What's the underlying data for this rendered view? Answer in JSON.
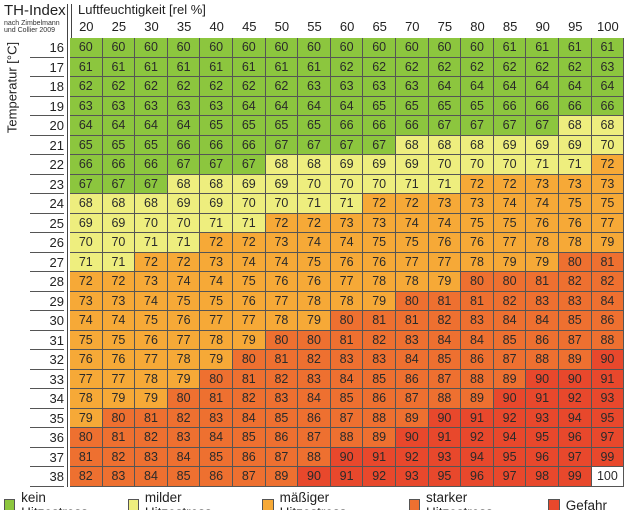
{
  "chart_data": {
    "type": "heatmap",
    "title": "TH-Index",
    "subtitle": "nach Zimbelmann und Collier 2009",
    "xlabel": "Luftfeuchtigkeit [rel %]",
    "ylabel": "Temperatur [°C]",
    "x": [
      "20",
      "25",
      "30",
      "35",
      "40",
      "45",
      "50",
      "55",
      "60",
      "65",
      "70",
      "75",
      "80",
      "85",
      "90",
      "95",
      "100"
    ],
    "y": [
      "16",
      "17",
      "18",
      "19",
      "20",
      "21",
      "22",
      "23",
      "24",
      "25",
      "26",
      "27",
      "28",
      "29",
      "30",
      "31",
      "32",
      "33",
      "34",
      "35",
      "36",
      "37",
      "38"
    ],
    "values": [
      [
        60,
        60,
        60,
        60,
        60,
        60,
        60,
        60,
        60,
        60,
        60,
        60,
        60,
        61,
        61,
        61,
        61
      ],
      [
        61,
        61,
        61,
        61,
        61,
        61,
        61,
        61,
        62,
        62,
        62,
        62,
        62,
        62,
        62,
        62,
        63
      ],
      [
        62,
        62,
        62,
        62,
        62,
        62,
        62,
        63,
        63,
        63,
        63,
        64,
        64,
        64,
        64,
        64,
        64
      ],
      [
        63,
        63,
        63,
        63,
        63,
        64,
        64,
        64,
        64,
        65,
        65,
        65,
        65,
        66,
        66,
        66,
        66
      ],
      [
        64,
        64,
        64,
        64,
        65,
        65,
        65,
        65,
        66,
        66,
        66,
        67,
        67,
        67,
        67,
        68,
        68
      ],
      [
        65,
        65,
        65,
        66,
        66,
        66,
        67,
        67,
        67,
        67,
        68,
        68,
        68,
        69,
        69,
        69,
        70
      ],
      [
        66,
        66,
        66,
        67,
        67,
        67,
        68,
        68,
        69,
        69,
        69,
        70,
        70,
        70,
        71,
        71,
        72
      ],
      [
        67,
        67,
        67,
        68,
        68,
        69,
        69,
        70,
        70,
        70,
        71,
        71,
        72,
        72,
        73,
        73,
        73
      ],
      [
        68,
        68,
        68,
        69,
        69,
        70,
        70,
        71,
        71,
        72,
        72,
        73,
        73,
        74,
        74,
        75,
        75
      ],
      [
        69,
        69,
        70,
        70,
        71,
        71,
        72,
        72,
        73,
        73,
        74,
        74,
        75,
        75,
        76,
        76,
        77
      ],
      [
        70,
        70,
        71,
        71,
        72,
        72,
        73,
        74,
        74,
        75,
        75,
        76,
        76,
        77,
        78,
        78,
        79
      ],
      [
        71,
        71,
        72,
        72,
        73,
        74,
        74,
        75,
        76,
        76,
        77,
        77,
        78,
        79,
        79,
        80,
        81
      ],
      [
        72,
        72,
        73,
        74,
        74,
        75,
        76,
        76,
        77,
        78,
        78,
        79,
        80,
        80,
        81,
        82,
        82
      ],
      [
        73,
        73,
        74,
        75,
        75,
        76,
        77,
        78,
        78,
        79,
        80,
        81,
        81,
        82,
        83,
        83,
        84
      ],
      [
        74,
        74,
        75,
        76,
        77,
        77,
        78,
        79,
        80,
        81,
        81,
        82,
        83,
        84,
        84,
        85,
        86
      ],
      [
        75,
        75,
        76,
        77,
        78,
        79,
        80,
        80,
        81,
        82,
        83,
        84,
        84,
        85,
        86,
        87,
        88
      ],
      [
        76,
        76,
        77,
        78,
        79,
        80,
        81,
        82,
        83,
        83,
        84,
        85,
        86,
        87,
        88,
        89,
        90
      ],
      [
        77,
        77,
        78,
        79,
        80,
        81,
        82,
        83,
        84,
        85,
        86,
        87,
        88,
        89,
        90,
        90,
        91
      ],
      [
        78,
        79,
        79,
        80,
        81,
        82,
        83,
        84,
        85,
        86,
        87,
        88,
        89,
        90,
        91,
        92,
        93
      ],
      [
        79,
        80,
        81,
        82,
        83,
        84,
        85,
        86,
        87,
        88,
        89,
        90,
        91,
        92,
        93,
        94,
        95
      ],
      [
        80,
        81,
        82,
        83,
        84,
        85,
        86,
        87,
        88,
        89,
        90,
        91,
        92,
        94,
        95,
        96,
        97
      ],
      [
        81,
        82,
        83,
        84,
        85,
        86,
        87,
        88,
        90,
        91,
        92,
        93,
        94,
        95,
        96,
        97,
        99
      ],
      [
        82,
        83,
        84,
        85,
        86,
        87,
        89,
        90,
        91,
        92,
        93,
        95,
        96,
        97,
        98,
        99,
        100
      ]
    ],
    "legend": [
      {
        "label": "kein Hitzestress",
        "color": "#8cc63e",
        "min": 0,
        "max": 67
      },
      {
        "label": "milder Hitzestress",
        "color": "#eeee7e",
        "min": 68,
        "max": 71
      },
      {
        "label": "mäßiger Hitzestress",
        "color": "#f6a937",
        "min": 72,
        "max": 79
      },
      {
        "label": "starker Hitzestress",
        "color": "#ee7030",
        "min": 80,
        "max": 89
      },
      {
        "label": "Gefahr",
        "color": "#e8482c",
        "min": 90,
        "max": 99
      }
    ],
    "legend_placement": "bottom"
  }
}
